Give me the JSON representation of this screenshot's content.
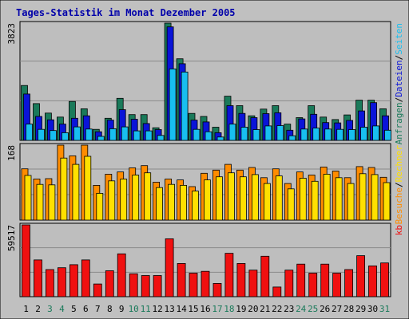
{
  "title": "Tages-Statistik im Monat Dezember 2005",
  "colors": {
    "background": "#c0c0c0",
    "panel": "#bebebe",
    "grid": "#8a8a8a",
    "anfragen": "#1a7a5a",
    "dateien": "#0a14d8",
    "seiten": "#18bff0",
    "besuche": "#ff8c00",
    "rechner": "#ffe000",
    "kb": "#f01010",
    "weekend": "#1a7a5a",
    "weekday": "#000000"
  },
  "chart_data": [
    {
      "type": "bar",
      "panel": "top",
      "categories": [
        "1",
        "2",
        "3",
        "4",
        "5",
        "6",
        "7",
        "8",
        "9",
        "10",
        "11",
        "12",
        "13",
        "14",
        "15",
        "16",
        "17",
        "18",
        "19",
        "20",
        "21",
        "22",
        "23",
        "24",
        "25",
        "26",
        "27",
        "28",
        "29",
        "30",
        "31"
      ],
      "ymax_label": "3823",
      "ylim": [
        0,
        3823
      ],
      "legend": [
        {
          "text": "Anfragen",
          "color": "#1a7a5a"
        },
        {
          "text": "/",
          "color": "#000000"
        },
        {
          "text": "Dateien",
          "color": "#0a14d8"
        },
        {
          "text": "/",
          "color": "#000000"
        },
        {
          "text": "Seiten",
          "color": "#18bff0"
        }
      ],
      "series": [
        {
          "key": "anfragen",
          "values": [
            1790,
            1200,
            890,
            760,
            1270,
            1030,
            360,
            720,
            1370,
            840,
            840,
            410,
            3823,
            2660,
            880,
            780,
            430,
            1440,
            1130,
            800,
            1020,
            1130,
            530,
            740,
            1130,
            760,
            680,
            830,
            1310,
            1310,
            1030
          ]
        },
        {
          "key": "dateien",
          "values": [
            1510,
            780,
            670,
            530,
            720,
            800,
            280,
            660,
            1000,
            690,
            550,
            350,
            3700,
            2500,
            660,
            600,
            250,
            1130,
            880,
            740,
            870,
            900,
            330,
            700,
            850,
            580,
            570,
            650,
            960,
            1230,
            800
          ]
        },
        {
          "key": "seiten",
          "values": [
            530,
            360,
            320,
            250,
            440,
            370,
            130,
            380,
            440,
            310,
            310,
            160,
            2330,
            2230,
            360,
            280,
            110,
            530,
            430,
            350,
            470,
            480,
            150,
            370,
            400,
            370,
            360,
            350,
            430,
            470,
            330
          ]
        }
      ]
    },
    {
      "type": "bar",
      "panel": "middle",
      "categories": [
        "1",
        "2",
        "3",
        "4",
        "5",
        "6",
        "7",
        "8",
        "9",
        "10",
        "11",
        "12",
        "13",
        "14",
        "15",
        "16",
        "17",
        "18",
        "19",
        "20",
        "21",
        "22",
        "23",
        "24",
        "25",
        "26",
        "27",
        "28",
        "29",
        "30",
        "31"
      ],
      "ymax_label": "168",
      "ylim": [
        0,
        168
      ],
      "legend": [
        {
          "text": "Besuche",
          "color": "#ff8c00"
        },
        {
          "text": "/",
          "color": "#000000"
        },
        {
          "text": "Rechner",
          "color": "#ffe000"
        }
      ],
      "series": [
        {
          "key": "besuche",
          "values": [
            115,
            92,
            93,
            168,
            144,
            168,
            78,
            103,
            108,
            117,
            122,
            85,
            92,
            90,
            75,
            105,
            112,
            125,
            112,
            118,
            95,
            115,
            82,
            108,
            101,
            119,
            110,
            95,
            120,
            118,
            96
          ]
        },
        {
          "key": "rechner",
          "values": [
            100,
            80,
            79,
            139,
            125,
            143,
            60,
            88,
            92,
            101,
            106,
            73,
            80,
            78,
            65,
            90,
            97,
            106,
            97,
            102,
            82,
            99,
            70,
            94,
            87,
            103,
            95,
            82,
            104,
            102,
            84
          ]
        }
      ]
    },
    {
      "type": "bar",
      "panel": "bottom",
      "categories": [
        "1",
        "2",
        "3",
        "4",
        "5",
        "6",
        "7",
        "8",
        "9",
        "10",
        "11",
        "12",
        "13",
        "14",
        "15",
        "16",
        "17",
        "18",
        "19",
        "20",
        "21",
        "22",
        "23",
        "24",
        "25",
        "26",
        "27",
        "28",
        "29",
        "30",
        "31"
      ],
      "ymax_label": "59517",
      "ylim": [
        0,
        59517
      ],
      "legend": [
        {
          "text": "kb",
          "color": "#f01010"
        }
      ],
      "series": [
        {
          "key": "kb",
          "values": [
            59517,
            30500,
            22500,
            24000,
            26500,
            30500,
            10500,
            21500,
            35500,
            19000,
            17500,
            17500,
            48000,
            27500,
            19500,
            21000,
            11000,
            36000,
            27500,
            22000,
            33500,
            8000,
            22000,
            27000,
            19500,
            27000,
            19500,
            22500,
            34000,
            25500,
            28000
          ]
        }
      ]
    }
  ],
  "x_labels": [
    {
      "text": "1",
      "weekend": false
    },
    {
      "text": "2",
      "weekend": false
    },
    {
      "text": "3",
      "weekend": true
    },
    {
      "text": "4",
      "weekend": true
    },
    {
      "text": "5",
      "weekend": false
    },
    {
      "text": "6",
      "weekend": false
    },
    {
      "text": "7",
      "weekend": false
    },
    {
      "text": "8",
      "weekend": false
    },
    {
      "text": "9",
      "weekend": false
    },
    {
      "text": "10",
      "weekend": true
    },
    {
      "text": "11",
      "weekend": true
    },
    {
      "text": "12",
      "weekend": false
    },
    {
      "text": "13",
      "weekend": false
    },
    {
      "text": "14",
      "weekend": false
    },
    {
      "text": "15",
      "weekend": false
    },
    {
      "text": "16",
      "weekend": false
    },
    {
      "text": "17",
      "weekend": true
    },
    {
      "text": "18",
      "weekend": true
    },
    {
      "text": "19",
      "weekend": false
    },
    {
      "text": "20",
      "weekend": false
    },
    {
      "text": "21",
      "weekend": false
    },
    {
      "text": "22",
      "weekend": false
    },
    {
      "text": "23",
      "weekend": false
    },
    {
      "text": "24",
      "weekend": true
    },
    {
      "text": "25",
      "weekend": true
    },
    {
      "text": "26",
      "weekend": false
    },
    {
      "text": "27",
      "weekend": false
    },
    {
      "text": "28",
      "weekend": false
    },
    {
      "text": "29",
      "weekend": false
    },
    {
      "text": "30",
      "weekend": false
    },
    {
      "text": "31",
      "weekend": true
    }
  ]
}
